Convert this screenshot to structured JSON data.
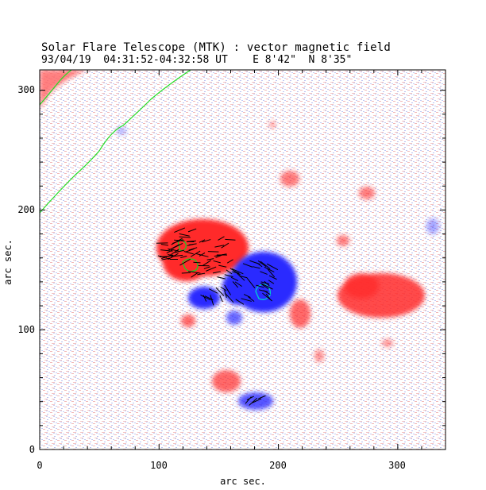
{
  "header": {
    "title": "Solar Flare Telescope (MTK) : vector magnetic field",
    "subtitle": "93/04/19  04:31:52-04:32:58 UT    E 8'42\"  N 8'35\""
  },
  "axes": {
    "xlabel": "arc sec.",
    "ylabel": "arc sec.",
    "xlim": [
      0,
      340
    ],
    "ylim": [
      0,
      317
    ],
    "x_ticks": [
      0,
      100,
      200,
      300
    ],
    "y_ticks": [
      0,
      100,
      200,
      300
    ]
  },
  "colors": {
    "positive": "#ff2020",
    "negative": "#2a2aff",
    "limb": "#22dd22",
    "contour": "#00c8c8",
    "vectors": "#000000"
  }
}
